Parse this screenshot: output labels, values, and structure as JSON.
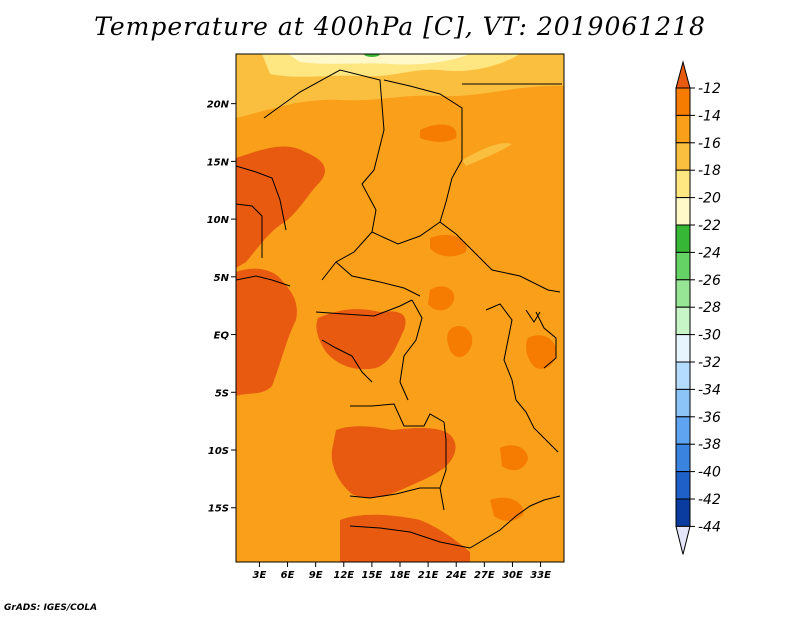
{
  "chart_data": {
    "type": "heatmap",
    "title": "Temperature at 400hPa [C], VT: 2019061218",
    "variable": "Temperature at 400hPa",
    "units": "C",
    "valid_time": "2019061218",
    "x_ticks": [
      "3E",
      "6E",
      "9E",
      "12E",
      "15E",
      "18E",
      "21E",
      "24E",
      "27E",
      "30E",
      "33E"
    ],
    "x_tick_values": [
      3,
      6,
      9,
      12,
      15,
      18,
      21,
      24,
      27,
      30,
      33
    ],
    "y_ticks": [
      "20N",
      "15N",
      "10N",
      "5N",
      "EQ",
      "5S",
      "10S",
      "15S"
    ],
    "y_tick_values": [
      20,
      15,
      10,
      5,
      0,
      -5,
      -10,
      -15
    ],
    "xlim": [
      0.5,
      35.5
    ],
    "ylim": [
      -19.7,
      24.3
    ],
    "colorbar": {
      "labels": [
        "-12",
        "-14",
        "-16",
        "-18",
        "-20",
        "-22",
        "-24",
        "-26",
        "-28",
        "-30",
        "-32",
        "-34",
        "-36",
        "-38",
        "-40",
        "-42",
        "-44"
      ],
      "colors": [
        "#e85a10",
        "#f57c00",
        "#f99f1a",
        "#fbbf40",
        "#fee680",
        "#fff8c8",
        "#36b836",
        "#64d264",
        "#96e696",
        "#c8f5c8",
        "#e6f5ff",
        "#b4dcff",
        "#8cc4f8",
        "#5ea4f0",
        "#3a84e0",
        "#1e60c8",
        "#0a3ca0",
        "#050a6e"
      ]
    },
    "field_summary": "Mostly -14 to -16 C across Central Africa; warmer (-12 to -14) patches over Nigeria, Gabon/Congo, the Congo basin and Angola/Zambia; cooler (-18 to -20) over the northern Sahara edge"
  },
  "footer": {
    "credit": "GrADS: IGES/COLA"
  }
}
